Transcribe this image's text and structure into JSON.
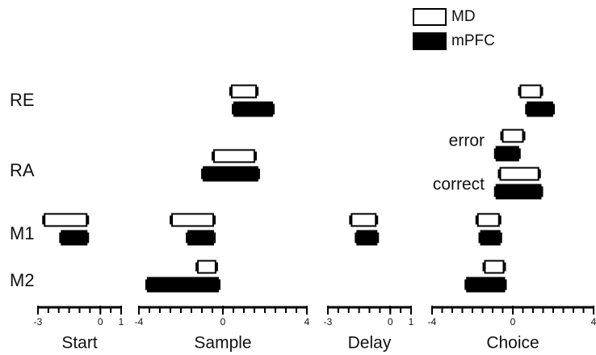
{
  "chart_data": {
    "type": "range_bar",
    "categories": [
      "RE",
      "RA",
      "M1",
      "M2"
    ],
    "series": [
      {
        "name": "MD",
        "color": "#ffffff"
      },
      {
        "name": "mPFC",
        "color": "#000000"
      }
    ],
    "xminor_step": 0.5,
    "panels": [
      {
        "label": "Start",
        "xlim": [
          -3,
          1
        ],
        "xticks": [
          -3,
          0,
          1
        ],
        "bars": [
          {
            "row": 2,
            "series": 0,
            "range": [
              -2.68,
              -0.66
            ]
          },
          {
            "row": 2,
            "series": 1,
            "range": [
              -1.86,
              -0.66
            ]
          }
        ]
      },
      {
        "label": "Sample",
        "xlim": [
          -4,
          4
        ],
        "xticks": [
          -4,
          0,
          4
        ],
        "bars": [
          {
            "row": 0,
            "series": 0,
            "range": [
              0.42,
              1.58
            ]
          },
          {
            "row": 0,
            "series": 1,
            "range": [
              0.54,
              2.35
            ]
          },
          {
            "row": 1,
            "series": 0,
            "range": [
              -0.42,
              1.5
            ]
          },
          {
            "row": 1,
            "series": 1,
            "range": [
              -0.92,
              1.65
            ]
          },
          {
            "row": 2,
            "series": 0,
            "range": [
              -2.42,
              -0.46
            ]
          },
          {
            "row": 2,
            "series": 1,
            "range": [
              -1.65,
              -0.46
            ]
          },
          {
            "row": 3,
            "series": 0,
            "range": [
              -1.19,
              -0.35
            ]
          },
          {
            "row": 3,
            "series": 1,
            "range": [
              -3.58,
              -0.23
            ]
          }
        ]
      },
      {
        "label": "Delay",
        "xlim": [
          -3,
          1
        ],
        "xticks": [
          -3,
          0,
          1
        ],
        "bars": [
          {
            "row": 2,
            "series": 0,
            "range": [
              -1.86,
              -0.7
            ]
          },
          {
            "row": 2,
            "series": 1,
            "range": [
              -1.59,
              -0.66
            ]
          }
        ]
      },
      {
        "label": "Choice",
        "xlim": [
          -4,
          4
        ],
        "xticks": [
          -4,
          0,
          4
        ],
        "sublabels": [
          "error",
          "correct"
        ],
        "bars": [
          {
            "row": 0,
            "series": 0,
            "range": [
              0.38,
              1.38
            ]
          },
          {
            "row": 0,
            "series": 1,
            "range": [
              0.73,
              1.96
            ]
          },
          {
            "row": 1,
            "sub": 0,
            "series": 0,
            "range": [
              -0.5,
              0.5
            ]
          },
          {
            "row": 1,
            "sub": 0,
            "series": 1,
            "range": [
              -0.81,
              0.27
            ]
          },
          {
            "row": 1,
            "sub": 1,
            "series": 0,
            "range": [
              -0.62,
              1.27
            ]
          },
          {
            "row": 1,
            "sub": 1,
            "series": 1,
            "range": [
              -0.81,
              1.38
            ]
          },
          {
            "row": 2,
            "series": 0,
            "range": [
              -1.73,
              -0.69
            ]
          },
          {
            "row": 2,
            "series": 1,
            "range": [
              -1.58,
              -0.65
            ]
          },
          {
            "row": 3,
            "series": 0,
            "range": [
              -1.38,
              -0.46
            ]
          },
          {
            "row": 3,
            "series": 1,
            "range": [
              -2.27,
              -0.42
            ]
          }
        ]
      }
    ]
  }
}
